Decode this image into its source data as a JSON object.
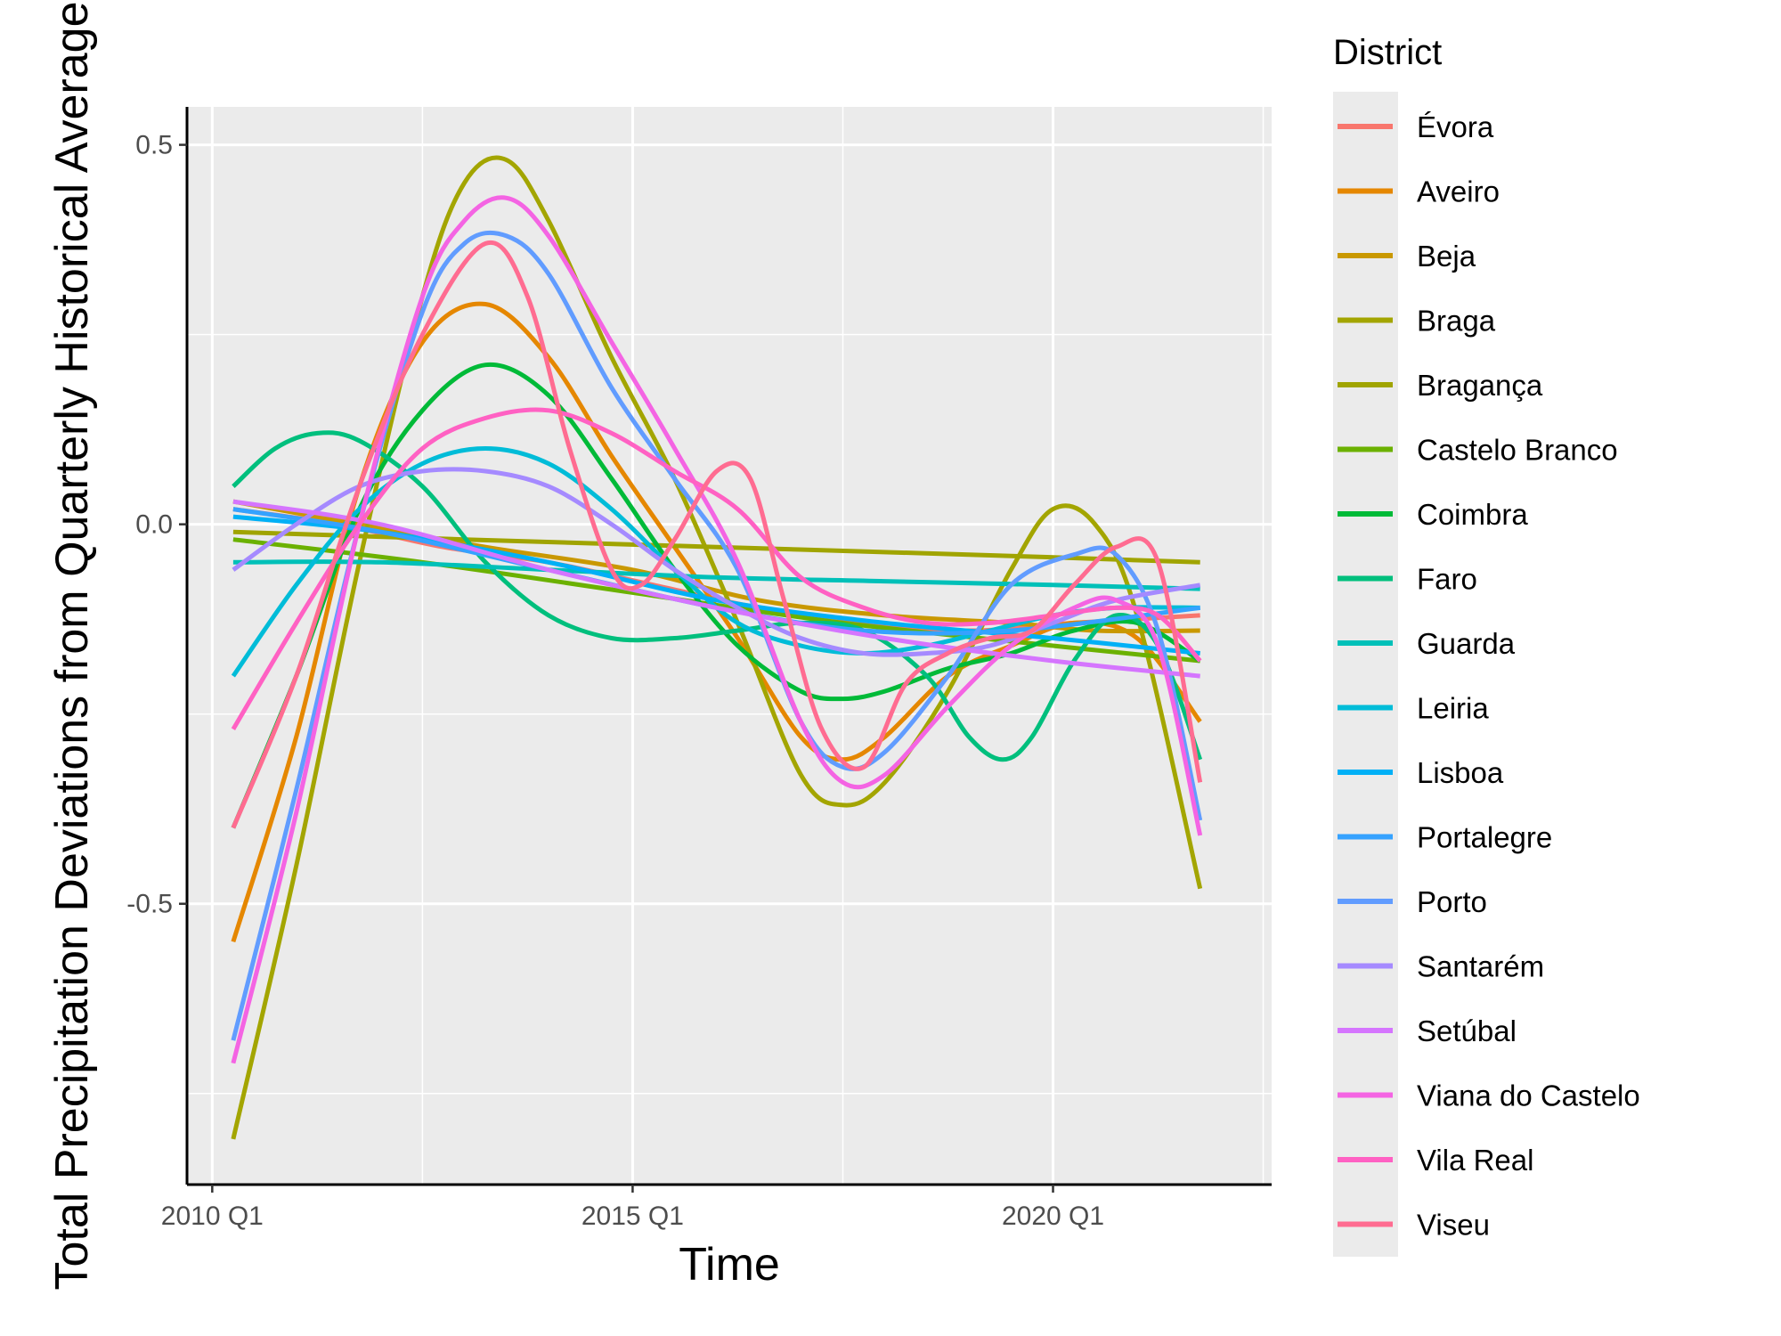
{
  "chart_data": {
    "type": "line",
    "xlabel": "Time",
    "ylabel": "Total Precipitation Deviations from Quarterly Historical Average",
    "xlim": [
      2009.7,
      2022.6
    ],
    "ylim": [
      -0.87,
      0.55
    ],
    "x_ticks": [
      {
        "value": 2010,
        "label": "2010 Q1"
      },
      {
        "value": 2015,
        "label": "2015 Q1"
      },
      {
        "value": 2020,
        "label": "2020 Q1"
      }
    ],
    "x_minor": [
      2012.5,
      2017.5,
      2022.5
    ],
    "y_ticks": [
      {
        "value": 0.5,
        "label": "0.5"
      },
      {
        "value": 0.0,
        "label": "0.0"
      },
      {
        "value": -0.5,
        "label": "-0.5"
      }
    ],
    "y_minor": [
      0.25,
      -0.25,
      -0.75
    ],
    "legend": {
      "title": "District",
      "position": "right"
    },
    "grid": true,
    "series": [
      {
        "name": "Évora",
        "color": "#F8766D",
        "x": [
          2010.25,
          2011.5,
          2012.75,
          2014,
          2015.25,
          2016.5,
          2017.75,
          2019,
          2020.25,
          2021.75
        ],
        "y": [
          0.02,
          0.0,
          -0.03,
          -0.05,
          -0.08,
          -0.11,
          -0.13,
          -0.14,
          -0.13,
          -0.12
        ]
      },
      {
        "name": "Aveiro",
        "color": "#E58700",
        "x": [
          2010.25,
          2011,
          2011.75,
          2012.5,
          2013.25,
          2014,
          2014.75,
          2015.5,
          2016.25,
          2017,
          2017.5,
          2018,
          2018.75,
          2019.5,
          2020.25,
          2021,
          2021.75
        ],
        "y": [
          -0.55,
          -0.28,
          0.05,
          0.24,
          0.29,
          0.22,
          0.09,
          -0.03,
          -0.15,
          -0.28,
          -0.31,
          -0.28,
          -0.2,
          -0.16,
          -0.13,
          -0.15,
          -0.26
        ]
      },
      {
        "name": "Beja",
        "color": "#C99800",
        "x": [
          2010.25,
          2011.75,
          2013.25,
          2015,
          2016.5,
          2018,
          2019.5,
          2020.5,
          2021.75
        ],
        "y": [
          0.03,
          0.0,
          -0.03,
          -0.06,
          -0.1,
          -0.12,
          -0.13,
          -0.14,
          -0.14
        ]
      },
      {
        "name": "Braga",
        "color": "#A3A500",
        "x": [
          2010.25,
          2011,
          2011.75,
          2012.5,
          2013,
          2013.5,
          2014,
          2014.75,
          2015.5,
          2016.25,
          2017,
          2017.5,
          2018,
          2018.75,
          2019.5,
          2020,
          2020.5,
          2021,
          2021.75
        ],
        "y": [
          -0.81,
          -0.45,
          -0.05,
          0.3,
          0.45,
          0.48,
          0.4,
          0.22,
          0.06,
          -0.13,
          -0.33,
          -0.37,
          -0.34,
          -0.22,
          -0.06,
          0.02,
          0.0,
          -0.12,
          -0.48
        ]
      },
      {
        "name": "Bragança",
        "color": "#A0A400",
        "x": [
          2010.25,
          2013,
          2016,
          2019,
          2021.75
        ],
        "y": [
          -0.01,
          -0.02,
          -0.03,
          -0.04,
          -0.05
        ]
      },
      {
        "name": "Castelo Branco",
        "color": "#6BB100",
        "x": [
          2010.25,
          2012.5,
          2015,
          2017.5,
          2020,
          2021.75
        ],
        "y": [
          -0.02,
          -0.05,
          -0.09,
          -0.13,
          -0.16,
          -0.18
        ]
      },
      {
        "name": "Coimbra",
        "color": "#00BA38",
        "x": [
          2010.25,
          2011,
          2011.75,
          2012.5,
          2013.25,
          2014,
          2014.75,
          2015.5,
          2016.25,
          2017,
          2017.5,
          2018,
          2018.75,
          2019.5,
          2020.25,
          2021,
          2021.75
        ],
        "y": [
          -0.4,
          -0.2,
          0.02,
          0.15,
          0.21,
          0.17,
          0.06,
          -0.06,
          -0.16,
          -0.22,
          -0.23,
          -0.22,
          -0.19,
          -0.17,
          -0.14,
          -0.13,
          -0.18
        ]
      },
      {
        "name": "Faro",
        "color": "#00BF7D",
        "x": [
          2010.25,
          2010.75,
          2011.25,
          2011.75,
          2012.5,
          2013.25,
          2014,
          2014.75,
          2015.5,
          2016.25,
          2017,
          2017.75,
          2018.5,
          2019,
          2019.4,
          2019.75,
          2020.25,
          2020.75,
          2021.25,
          2021.75
        ],
        "y": [
          0.05,
          0.1,
          0.12,
          0.11,
          0.05,
          -0.05,
          -0.12,
          -0.15,
          -0.15,
          -0.14,
          -0.13,
          -0.14,
          -0.2,
          -0.28,
          -0.31,
          -0.28,
          -0.18,
          -0.12,
          -0.16,
          -0.31
        ]
      },
      {
        "name": "Guarda",
        "color": "#00C0B8",
        "x": [
          2010.25,
          2012,
          2014,
          2016,
          2018,
          2020,
          2021.75
        ],
        "y": [
          -0.05,
          -0.05,
          -0.06,
          -0.07,
          -0.075,
          -0.08,
          -0.085
        ]
      },
      {
        "name": "Leiria",
        "color": "#00BCD8",
        "x": [
          2010.25,
          2011,
          2011.75,
          2012.5,
          2013.25,
          2014,
          2014.75,
          2015.5,
          2016.25,
          2017,
          2017.75,
          2018.5,
          2019.25,
          2020,
          2020.75,
          2021.75
        ],
        "y": [
          -0.2,
          -0.08,
          0.02,
          0.08,
          0.1,
          0.08,
          0.02,
          -0.06,
          -0.13,
          -0.16,
          -0.17,
          -0.16,
          -0.14,
          -0.12,
          -0.11,
          -0.11
        ]
      },
      {
        "name": "Lisboa",
        "color": "#00B0F6",
        "x": [
          2010.25,
          2012,
          2014,
          2016,
          2018,
          2020,
          2021.75
        ],
        "y": [
          0.01,
          -0.01,
          -0.05,
          -0.1,
          -0.13,
          -0.15,
          -0.17
        ]
      },
      {
        "name": "Portalegre",
        "color": "#35A2FF",
        "x": [
          2010.25,
          2012,
          2014,
          2016,
          2017.75,
          2019.5,
          2021.75
        ],
        "y": [
          0.02,
          -0.01,
          -0.06,
          -0.11,
          -0.14,
          -0.14,
          -0.11
        ]
      },
      {
        "name": "Porto",
        "color": "#619CFF",
        "x": [
          2010.25,
          2011,
          2011.75,
          2012.5,
          2013,
          2013.5,
          2014,
          2014.75,
          2015.5,
          2016.25,
          2017,
          2017.5,
          2018,
          2018.75,
          2019.5,
          2020.25,
          2020.75,
          2021.25,
          2021.75
        ],
        "y": [
          -0.68,
          -0.35,
          0.0,
          0.28,
          0.37,
          0.38,
          0.33,
          0.18,
          0.06,
          -0.06,
          -0.26,
          -0.32,
          -0.3,
          -0.2,
          -0.08,
          -0.04,
          -0.04,
          -0.14,
          -0.39
        ]
      },
      {
        "name": "Santarém",
        "color": "#A58AFF",
        "x": [
          2010.25,
          2011,
          2011.75,
          2012.5,
          2013.25,
          2014,
          2014.75,
          2015.5,
          2016.25,
          2017,
          2017.75,
          2018.5,
          2019.25,
          2020,
          2020.75,
          2021.75
        ],
        "y": [
          -0.06,
          0.0,
          0.05,
          0.07,
          0.07,
          0.05,
          0.0,
          -0.06,
          -0.11,
          -0.15,
          -0.17,
          -0.17,
          -0.16,
          -0.13,
          -0.1,
          -0.08
        ]
      },
      {
        "name": "Setúbal",
        "color": "#D575FE",
        "x": [
          2010.25,
          2012,
          2014,
          2016,
          2018,
          2020,
          2021.75
        ],
        "y": [
          0.03,
          0.0,
          -0.06,
          -0.11,
          -0.15,
          -0.18,
          -0.2
        ]
      },
      {
        "name": "Viana do Castelo",
        "color": "#F464E3",
        "x": [
          2010.25,
          2011,
          2011.75,
          2012.5,
          2013,
          2013.5,
          2014,
          2014.75,
          2015.5,
          2016.25,
          2017,
          2017.5,
          2018,
          2018.75,
          2019.5,
          2020.25,
          2020.75,
          2021.25,
          2021.75
        ],
        "y": [
          -0.71,
          -0.38,
          0.0,
          0.3,
          0.4,
          0.43,
          0.38,
          0.24,
          0.1,
          -0.05,
          -0.26,
          -0.34,
          -0.33,
          -0.24,
          -0.16,
          -0.11,
          -0.1,
          -0.16,
          -0.41
        ]
      },
      {
        "name": "Vila Real",
        "color": "#FF61C3",
        "x": [
          2010.25,
          2011,
          2011.75,
          2012.5,
          2013.25,
          2014,
          2014.75,
          2015.5,
          2016.25,
          2017,
          2017.75,
          2018.5,
          2019.25,
          2020,
          2020.75,
          2021.25,
          2021.75
        ],
        "y": [
          -0.27,
          -0.13,
          0.0,
          0.1,
          0.14,
          0.15,
          0.12,
          0.07,
          0.02,
          -0.07,
          -0.11,
          -0.13,
          -0.13,
          -0.12,
          -0.11,
          -0.12,
          -0.18
        ]
      },
      {
        "name": "Viseu",
        "color": "#FF6C91",
        "x": [
          2010.25,
          2011,
          2011.75,
          2012.5,
          2013.25,
          2013.75,
          2014.25,
          2014.75,
          2015.1,
          2015.5,
          2016,
          2016.4,
          2016.8,
          2017.25,
          2017.75,
          2018.25,
          2018.75,
          2019.25,
          2019.75,
          2020.25,
          2020.75,
          2021.25,
          2021.75
        ],
        "y": [
          -0.4,
          -0.2,
          0.05,
          0.25,
          0.37,
          0.3,
          0.1,
          -0.06,
          -0.08,
          -0.02,
          0.07,
          0.06,
          -0.1,
          -0.27,
          -0.32,
          -0.21,
          -0.17,
          -0.15,
          -0.14,
          -0.08,
          -0.03,
          -0.05,
          -0.34
        ]
      }
    ]
  }
}
